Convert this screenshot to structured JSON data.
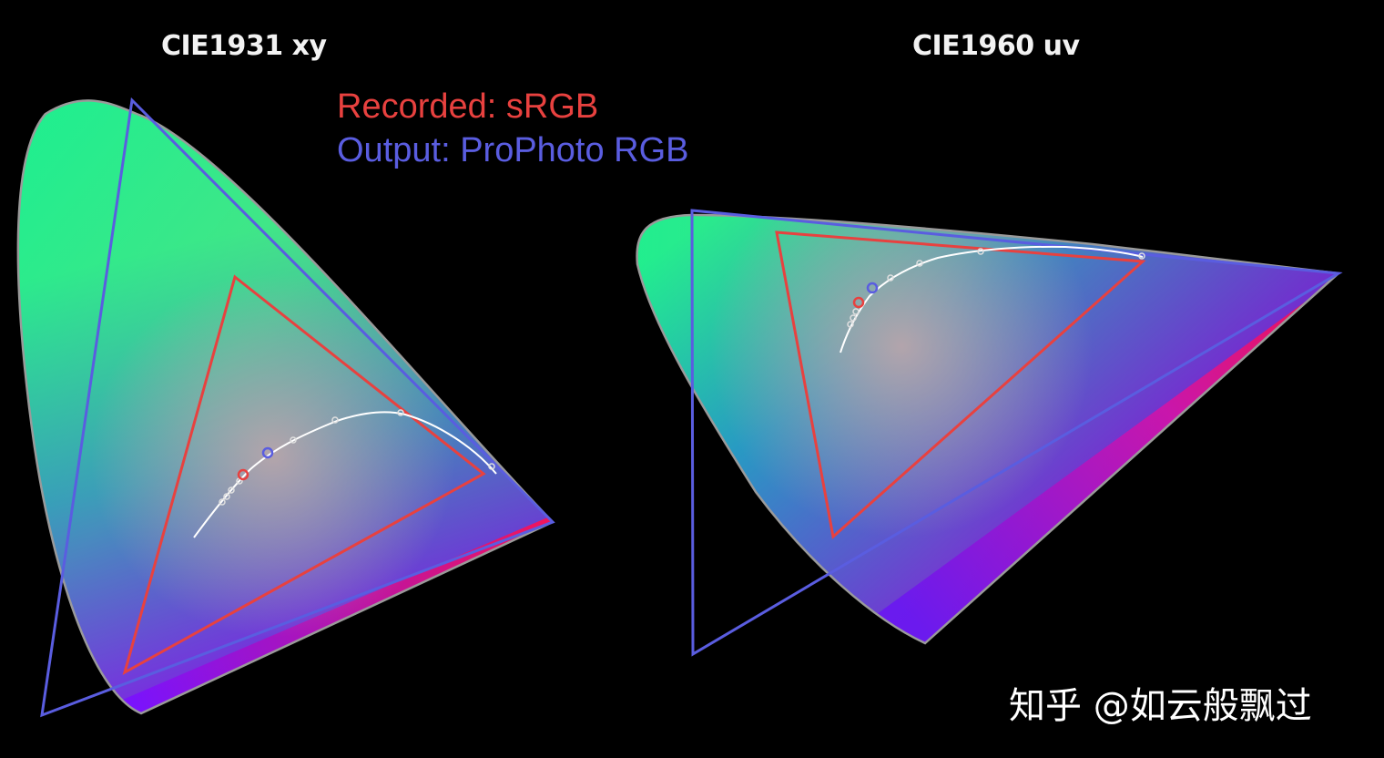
{
  "diagram": {
    "left": {
      "title": "CIE1931 xy"
    },
    "right": {
      "title": "CIE1960 uv"
    },
    "legend": [
      {
        "label": "Recorded: sRGB",
        "color": "#e8413f"
      },
      {
        "label": "Output: ProPhoto RGB",
        "color": "#5a5de0"
      }
    ],
    "watermark": "知乎 @如云般飘过",
    "colors": {
      "background": "#000000",
      "locus_outline": "#9a9a9a",
      "srgb_triangle": "#e8413f",
      "prophoto_triangle": "#5a5de0",
      "planckian_locus": "#ffffff"
    }
  }
}
